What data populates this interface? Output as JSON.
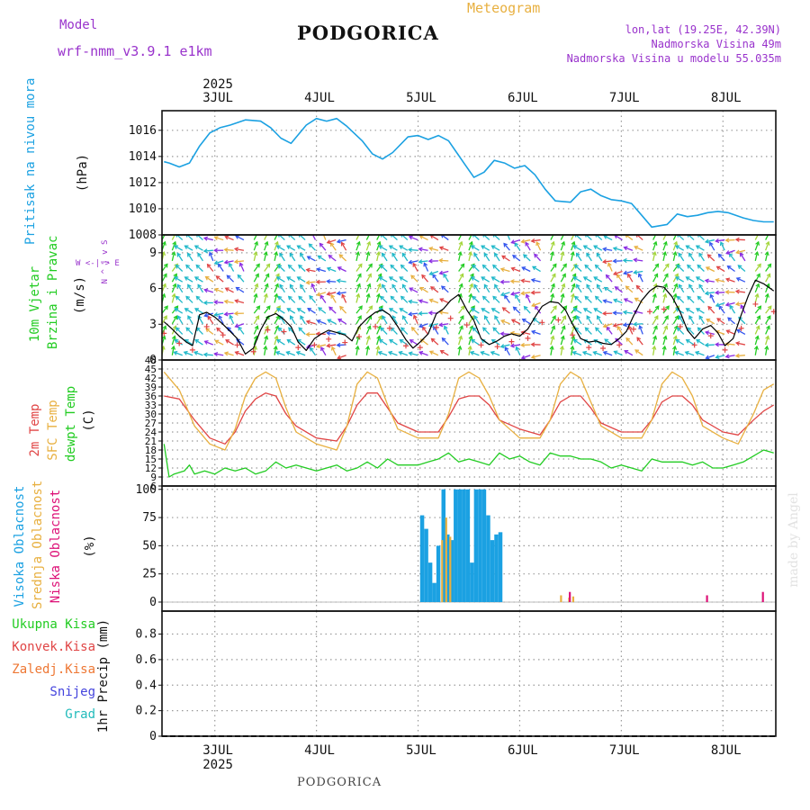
{
  "header": {
    "model_label": "Model",
    "model_name": "wrf-nmm_v3.9.1  e1km",
    "station": "PODGORICA",
    "chart_kind": "Meteogram",
    "coords": "lon,lat (19.25E, 42.39N)",
    "elevation": "Nadmorska Visina 49m",
    "model_elevation": "Nadmorska Visina u modelu 55.035m",
    "footer_station": "PODGORICA",
    "watermark": "made by Angel"
  },
  "colors": {
    "purple": "#9933cc",
    "blue": "#1ba1e2",
    "green": "#22cc22",
    "red": "#e04545",
    "orange": "#e0a040",
    "magenta": "#dd1177",
    "gold": "#e8b040"
  },
  "chart_data": [
    {
      "type": "line",
      "panel": "pressure",
      "label": "Pritisak na nivou mora",
      "unit": "(hPa)",
      "ylim": [
        1008,
        1017.5
      ],
      "yticks": [
        1008,
        1010,
        1012,
        1014,
        1016
      ],
      "x_year": "2025",
      "x_ticks": [
        "3JUL",
        "4JUL",
        "5JUL",
        "6JUL",
        "7JUL",
        "8JUL"
      ],
      "x_days": [
        0,
        1,
        2,
        3,
        4,
        5,
        6
      ],
      "series": [
        {
          "color": "#1ba1e2",
          "x": [
            -0.5,
            -0.45,
            -0.35,
            -0.25,
            -0.15,
            -0.05,
            0.05,
            0.15,
            0.3,
            0.45,
            0.55,
            0.65,
            0.75,
            0.9,
            1.0,
            1.1,
            1.2,
            1.3,
            1.45,
            1.55,
            1.65,
            1.75,
            1.9,
            2.0,
            2.1,
            2.2,
            2.3,
            2.45,
            2.55,
            2.65,
            2.75,
            2.85,
            2.95,
            3.05,
            3.15,
            3.25,
            3.35,
            3.5,
            3.6,
            3.7,
            3.8,
            3.9,
            4.0,
            4.1,
            4.2,
            4.3,
            4.45,
            4.55,
            4.65,
            4.75,
            4.85,
            4.95,
            5.05,
            5.2,
            5.3,
            5.4,
            5.5
          ],
          "y": [
            1013.6,
            1013.5,
            1013.2,
            1013.5,
            1014.8,
            1015.8,
            1016.2,
            1016.4,
            1016.8,
            1016.7,
            1016.2,
            1015.4,
            1015.0,
            1016.4,
            1016.9,
            1016.7,
            1016.9,
            1016.3,
            1015.2,
            1014.2,
            1013.8,
            1014.3,
            1015.5,
            1015.6,
            1015.3,
            1015.6,
            1015.2,
            1013.5,
            1012.4,
            1012.8,
            1013.7,
            1013.5,
            1013.1,
            1013.3,
            1012.6,
            1011.5,
            1010.6,
            1010.5,
            1011.3,
            1011.5,
            1011.0,
            1010.7,
            1010.6,
            1010.4,
            1009.5,
            1008.6,
            1008.8,
            1009.6,
            1009.4,
            1009.5,
            1009.7,
            1009.8,
            1009.7,
            1009.3,
            1009.1,
            1009.0,
            1009.0
          ]
        }
      ]
    },
    {
      "type": "line",
      "panel": "wind",
      "label": "10m Vjetar Brzina i Pravac",
      "unit": "(m/s)",
      "compass": "W <-|-> E",
      "compass_vertical": "N ^ | v S",
      "ylim": [
        0,
        10.5
      ],
      "yticks": [
        0,
        3,
        6,
        9
      ],
      "series": [
        {
          "name": "speed",
          "color": "#000000",
          "x": [
            -0.5,
            -0.42,
            -0.35,
            -0.28,
            -0.22,
            -0.15,
            -0.08,
            0.0,
            0.08,
            0.15,
            0.22,
            0.3,
            0.38,
            0.45,
            0.52,
            0.6,
            0.68,
            0.75,
            0.82,
            0.9,
            0.98,
            1.05,
            1.12,
            1.2,
            1.28,
            1.35,
            1.42,
            1.5,
            1.58,
            1.65,
            1.72,
            1.8,
            1.88,
            1.95,
            2.02,
            2.1,
            2.18,
            2.25,
            2.32,
            2.4,
            2.48,
            2.55,
            2.62,
            2.7,
            2.78,
            2.85,
            2.92,
            3.0,
            3.08,
            3.15,
            3.22,
            3.3,
            3.38,
            3.45,
            3.52,
            3.6,
            3.68,
            3.75,
            3.82,
            3.9,
            3.98,
            4.05,
            4.12,
            4.2,
            4.28,
            4.35,
            4.42,
            4.5,
            4.58,
            4.65,
            4.72,
            4.8,
            4.88,
            4.95,
            5.02,
            5.1,
            5.18,
            5.25,
            5.32,
            5.4,
            5.5
          ],
          "y": [
            3.2,
            2.6,
            2.0,
            1.5,
            1.2,
            3.8,
            4.0,
            3.6,
            3.0,
            2.4,
            1.8,
            0.5,
            1.0,
            2.5,
            3.6,
            3.9,
            3.4,
            2.8,
            1.5,
            0.8,
            1.8,
            2.2,
            2.5,
            2.3,
            2.1,
            1.6,
            2.8,
            3.5,
            4.0,
            4.2,
            3.8,
            2.8,
            1.7,
            1.0,
            1.5,
            2.2,
            3.9,
            4.3,
            5.0,
            5.5,
            4.2,
            3.3,
            1.8,
            1.3,
            1.6,
            2.0,
            2.2,
            2.0,
            2.6,
            3.6,
            4.5,
            4.9,
            4.8,
            4.2,
            3.0,
            1.8,
            1.5,
            1.6,
            1.4,
            1.3,
            1.8,
            2.4,
            3.7,
            5.0,
            5.8,
            6.2,
            6.1,
            5.3,
            4.0,
            2.5,
            1.8,
            2.6,
            2.9,
            2.3,
            1.2,
            1.8,
            3.8,
            5.4,
            6.7,
            6.4,
            5.8
          ]
        }
      ]
    },
    {
      "type": "line",
      "panel": "temperature",
      "label_2m": "2m Temp",
      "label_sfc": "SFC Temp",
      "label_dew": "dewpt Temp",
      "unit": "(C)",
      "ylim": [
        6,
        48
      ],
      "yticks": [
        6,
        9,
        12,
        15,
        18,
        21,
        24,
        27,
        30,
        33,
        36,
        39,
        42,
        45,
        48
      ],
      "series": [
        {
          "name": "2m Temp",
          "color": "#e04545",
          "x": [
            -0.5,
            -0.35,
            -0.2,
            -0.05,
            0.1,
            0.2,
            0.3,
            0.4,
            0.5,
            0.6,
            0.7,
            0.8,
            1.0,
            1.2,
            1.3,
            1.4,
            1.5,
            1.6,
            1.7,
            1.8,
            2.0,
            2.2,
            2.3,
            2.4,
            2.5,
            2.6,
            2.7,
            2.8,
            3.0,
            3.2,
            3.3,
            3.4,
            3.5,
            3.6,
            3.7,
            3.8,
            4.0,
            4.2,
            4.3,
            4.4,
            4.5,
            4.6,
            4.7,
            4.8,
            5.0,
            5.15,
            5.3,
            5.4,
            5.5
          ],
          "y": [
            36,
            35,
            28,
            22,
            20,
            24,
            31,
            35,
            37,
            36,
            30,
            26,
            22,
            21,
            26,
            33,
            37,
            37,
            32,
            27,
            24,
            24,
            29,
            35,
            36,
            36,
            33,
            28,
            25,
            23,
            28,
            34,
            36,
            36,
            32,
            27,
            24,
            24,
            28,
            34,
            36,
            36,
            33,
            28,
            24,
            23,
            28,
            31,
            33
          ]
        },
        {
          "name": "SFC Temp",
          "color": "#e8b040",
          "x": [
            -0.5,
            -0.35,
            -0.2,
            -0.05,
            0.1,
            0.2,
            0.3,
            0.4,
            0.5,
            0.6,
            0.7,
            0.8,
            1.0,
            1.2,
            1.3,
            1.4,
            1.5,
            1.6,
            1.7,
            1.8,
            2.0,
            2.2,
            2.3,
            2.4,
            2.5,
            2.6,
            2.7,
            2.8,
            3.0,
            3.2,
            3.3,
            3.4,
            3.5,
            3.6,
            3.7,
            3.8,
            4.0,
            4.2,
            4.3,
            4.4,
            4.5,
            4.6,
            4.7,
            4.8,
            5.0,
            5.15,
            5.3,
            5.4,
            5.5
          ],
          "y": [
            44,
            38,
            26,
            20,
            18,
            25,
            36,
            42,
            44,
            42,
            32,
            24,
            20,
            18,
            26,
            40,
            44,
            42,
            33,
            25,
            22,
            22,
            30,
            42,
            44,
            42,
            36,
            28,
            22,
            22,
            28,
            40,
            44,
            42,
            34,
            26,
            22,
            22,
            28,
            40,
            44,
            42,
            36,
            26,
            22,
            20,
            30,
            38,
            40
          ]
        },
        {
          "name": "dewpt Temp",
          "color": "#22cc22",
          "x": [
            -0.5,
            -0.45,
            -0.4,
            -0.3,
            -0.25,
            -0.2,
            -0.1,
            0.0,
            0.1,
            0.2,
            0.3,
            0.4,
            0.5,
            0.6,
            0.7,
            0.8,
            0.9,
            1.0,
            1.1,
            1.2,
            1.3,
            1.4,
            1.5,
            1.6,
            1.7,
            1.8,
            1.9,
            2.0,
            2.1,
            2.2,
            2.3,
            2.4,
            2.5,
            2.6,
            2.7,
            2.8,
            2.9,
            3.0,
            3.1,
            3.2,
            3.3,
            3.4,
            3.5,
            3.6,
            3.7,
            3.8,
            3.9,
            4.0,
            4.1,
            4.2,
            4.3,
            4.4,
            4.5,
            4.6,
            4.7,
            4.8,
            4.9,
            5.0,
            5.1,
            5.2,
            5.3,
            5.4,
            5.5
          ],
          "y": [
            20,
            9,
            10,
            11,
            13,
            10,
            11,
            10,
            12,
            11,
            12,
            10,
            11,
            14,
            12,
            13,
            12,
            11,
            12,
            13,
            11,
            12,
            14,
            12,
            15,
            13,
            13,
            13,
            14,
            15,
            17,
            14,
            15,
            14,
            13,
            17,
            15,
            16,
            14,
            13,
            17,
            16,
            16,
            15,
            15,
            14,
            12,
            13,
            12,
            11,
            15,
            14,
            14,
            14,
            13,
            14,
            12,
            12,
            13,
            14,
            16,
            18,
            17
          ]
        }
      ]
    },
    {
      "type": "bar",
      "panel": "cloud",
      "label_high": "Visoka Oblacnost",
      "label_mid": "Srednja Oblacnost",
      "label_low": "Niska Oblacnost",
      "unit": "(%)",
      "ylim": [
        -8,
        103
      ],
      "yticks": [
        0,
        25,
        50,
        75,
        100
      ],
      "series": [
        {
          "name": "Visoka Oblacnost",
          "color": "#1ba1e2",
          "x": [
            2.04,
            2.08,
            2.12,
            2.16,
            2.2,
            2.25,
            2.29,
            2.33,
            2.37,
            2.41,
            2.45,
            2.49,
            2.53,
            2.57,
            2.61,
            2.65,
            2.69,
            2.73,
            2.77,
            2.81
          ],
          "y": [
            77,
            65,
            35,
            17,
            50,
            100,
            60,
            55,
            100,
            100,
            100,
            100,
            35,
            100,
            100,
            100,
            77,
            55,
            60,
            62
          ]
        },
        {
          "name": "Srednja Oblacnost",
          "color": "#e8b040",
          "x": [
            2.25,
            2.29,
            2.33,
            3.42,
            3.5,
            3.54
          ],
          "y": [
            55,
            75,
            58,
            6,
            4,
            5
          ]
        },
        {
          "name": "Niska Oblacnost",
          "color": "#dd1177",
          "x": [
            3.48,
            4.83,
            5.38
          ],
          "y": [
            9,
            6,
            9
          ]
        }
      ]
    },
    {
      "type": "bar",
      "panel": "precip",
      "label_total": "Ukupna Kisa",
      "label_conv": "Konvek.Kisa",
      "label_frz": "Zaledj.Kisa",
      "label_snow": "Snijeg",
      "label_grad": "Grad",
      "unit": "1hr Precip (mm)",
      "ylim": [
        0,
        0.98
      ],
      "yticks": [
        "0",
        "0.2",
        "0.4",
        "0.6",
        "0.8"
      ],
      "series": []
    }
  ]
}
